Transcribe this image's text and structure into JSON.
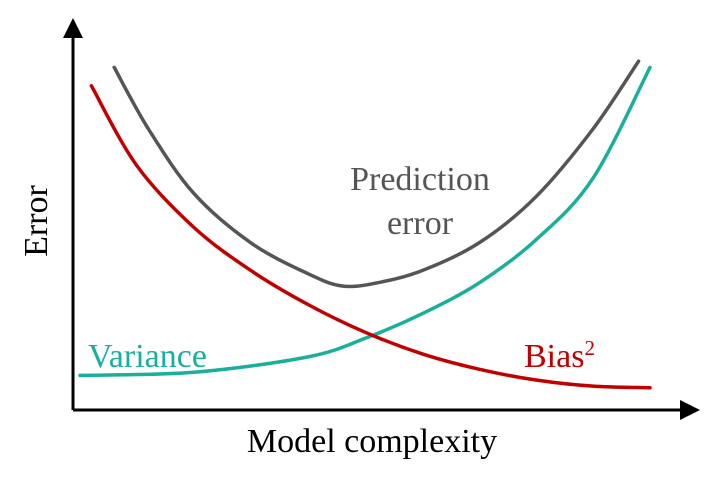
{
  "chart_data": {
    "type": "line",
    "title": "",
    "xlabel": "Model complexity",
    "ylabel": "Error",
    "x_ticks": false,
    "y_ticks": false,
    "grid": false,
    "legend": "none (series labelled inline)",
    "xlim": [
      0,
      100
    ],
    "ylim": [
      0,
      100
    ],
    "series": [
      {
        "name": "Variance",
        "color": "#1aaf9b",
        "x": [
          0,
          20,
          40,
          50,
          60,
          70,
          80,
          90,
          100
        ],
        "y": [
          8,
          9,
          14,
          20,
          28,
          38,
          52,
          72,
          108
        ]
      },
      {
        "name": "Bias",
        "name_superscript": "2",
        "color": "#c00000",
        "x": [
          2,
          10,
          20,
          30,
          40,
          50,
          60,
          70,
          80,
          90,
          100
        ],
        "y": [
          102,
          76,
          56,
          42,
          31,
          22,
          15,
          10,
          6.5,
          4.5,
          4
        ]
      },
      {
        "name": "Prediction\nerror",
        "label_lines": [
          "Prediction",
          "error"
        ],
        "color": "#555555",
        "x": [
          6,
          12,
          20,
          30,
          40,
          46,
          52,
          60,
          70,
          80,
          90,
          98
        ],
        "y": [
          108,
          88,
          67,
          51,
          41,
          37,
          38,
          42,
          51,
          66,
          88,
          110
        ]
      }
    ]
  }
}
